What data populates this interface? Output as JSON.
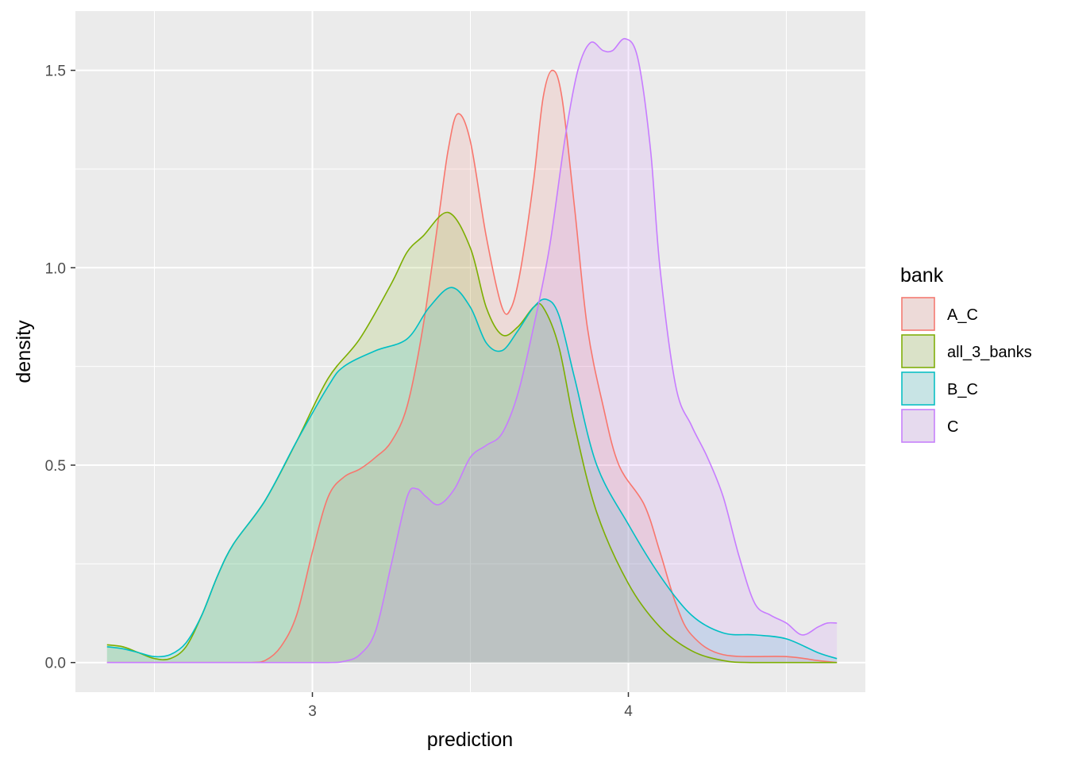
{
  "chart_data": {
    "type": "area",
    "subtype": "density",
    "xlabel": "prediction",
    "ylabel": "density",
    "xlim": [
      2.25,
      4.75
    ],
    "ylim": [
      -0.075,
      1.65
    ],
    "x_ticks": [
      3,
      4
    ],
    "x_tick_labels": [
      "3",
      "4"
    ],
    "x_minor_ticks": [
      2.5,
      3.5,
      4.5
    ],
    "y_ticks": [
      0.0,
      0.5,
      1.0,
      1.5
    ],
    "y_tick_labels": [
      "0.0",
      "0.5",
      "1.0",
      "1.5"
    ],
    "y_minor_ticks": [
      0.25,
      0.75,
      1.25
    ],
    "grid": true,
    "panel_background": "#ebebeb",
    "fill_opacity": 0.15,
    "legend": {
      "title": "bank",
      "placement": "right",
      "entries": [
        "A_C",
        "all_3_banks",
        "B_C",
        "C"
      ]
    },
    "series": [
      {
        "name": "A_C",
        "color": "#f8766d",
        "points": [
          [
            2.35,
            0
          ],
          [
            2.6,
            0
          ],
          [
            2.8,
            0
          ],
          [
            2.85,
            0.005
          ],
          [
            2.9,
            0.04
          ],
          [
            2.95,
            0.12
          ],
          [
            3.0,
            0.28
          ],
          [
            3.05,
            0.42
          ],
          [
            3.1,
            0.47
          ],
          [
            3.15,
            0.49
          ],
          [
            3.2,
            0.52
          ],
          [
            3.25,
            0.56
          ],
          [
            3.3,
            0.65
          ],
          [
            3.35,
            0.85
          ],
          [
            3.4,
            1.13
          ],
          [
            3.43,
            1.3
          ],
          [
            3.46,
            1.39
          ],
          [
            3.5,
            1.32
          ],
          [
            3.55,
            1.08
          ],
          [
            3.6,
            0.9
          ],
          [
            3.63,
            0.9
          ],
          [
            3.66,
            1.0
          ],
          [
            3.7,
            1.22
          ],
          [
            3.73,
            1.43
          ],
          [
            3.76,
            1.5
          ],
          [
            3.79,
            1.43
          ],
          [
            3.83,
            1.15
          ],
          [
            3.87,
            0.85
          ],
          [
            3.92,
            0.65
          ],
          [
            3.97,
            0.5
          ],
          [
            4.05,
            0.4
          ],
          [
            4.1,
            0.28
          ],
          [
            4.15,
            0.15
          ],
          [
            4.2,
            0.07
          ],
          [
            4.3,
            0.02
          ],
          [
            4.5,
            0.015
          ],
          [
            4.6,
            0.005
          ],
          [
            4.66,
            0
          ]
        ]
      },
      {
        "name": "all_3_banks",
        "color": "#7cae00",
        "points": [
          [
            2.35,
            0.045
          ],
          [
            2.4,
            0.04
          ],
          [
            2.45,
            0.025
          ],
          [
            2.5,
            0.01
          ],
          [
            2.55,
            0.01
          ],
          [
            2.6,
            0.04
          ],
          [
            2.65,
            0.12
          ],
          [
            2.7,
            0.22
          ],
          [
            2.75,
            0.3
          ],
          [
            2.85,
            0.41
          ],
          [
            2.95,
            0.56
          ],
          [
            3.05,
            0.72
          ],
          [
            3.15,
            0.82
          ],
          [
            3.25,
            0.96
          ],
          [
            3.3,
            1.04
          ],
          [
            3.35,
            1.08
          ],
          [
            3.43,
            1.14
          ],
          [
            3.5,
            1.05
          ],
          [
            3.55,
            0.9
          ],
          [
            3.6,
            0.83
          ],
          [
            3.65,
            0.85
          ],
          [
            3.7,
            0.9
          ],
          [
            3.73,
            0.9
          ],
          [
            3.78,
            0.8
          ],
          [
            3.83,
            0.6
          ],
          [
            3.9,
            0.38
          ],
          [
            4.0,
            0.2
          ],
          [
            4.1,
            0.09
          ],
          [
            4.2,
            0.03
          ],
          [
            4.3,
            0.005
          ],
          [
            4.4,
            0
          ],
          [
            4.66,
            0
          ]
        ]
      },
      {
        "name": "B_C",
        "color": "#00bfc4",
        "points": [
          [
            2.35,
            0.04
          ],
          [
            2.4,
            0.035
          ],
          [
            2.45,
            0.025
          ],
          [
            2.5,
            0.015
          ],
          [
            2.55,
            0.02
          ],
          [
            2.6,
            0.05
          ],
          [
            2.65,
            0.12
          ],
          [
            2.7,
            0.22
          ],
          [
            2.75,
            0.3
          ],
          [
            2.85,
            0.41
          ],
          [
            2.95,
            0.56
          ],
          [
            3.05,
            0.7
          ],
          [
            3.1,
            0.75
          ],
          [
            3.2,
            0.79
          ],
          [
            3.3,
            0.82
          ],
          [
            3.37,
            0.9
          ],
          [
            3.44,
            0.95
          ],
          [
            3.5,
            0.9
          ],
          [
            3.55,
            0.81
          ],
          [
            3.6,
            0.79
          ],
          [
            3.65,
            0.84
          ],
          [
            3.7,
            0.9
          ],
          [
            3.74,
            0.92
          ],
          [
            3.78,
            0.88
          ],
          [
            3.83,
            0.72
          ],
          [
            3.9,
            0.5
          ],
          [
            4.0,
            0.35
          ],
          [
            4.1,
            0.22
          ],
          [
            4.2,
            0.12
          ],
          [
            4.3,
            0.075
          ],
          [
            4.4,
            0.07
          ],
          [
            4.5,
            0.06
          ],
          [
            4.6,
            0.025
          ],
          [
            4.66,
            0.01
          ]
        ]
      },
      {
        "name": "C",
        "color": "#c77cff",
        "points": [
          [
            2.35,
            0
          ],
          [
            2.9,
            0
          ],
          [
            3.05,
            0
          ],
          [
            3.1,
            0.003
          ],
          [
            3.15,
            0.02
          ],
          [
            3.2,
            0.08
          ],
          [
            3.25,
            0.25
          ],
          [
            3.3,
            0.42
          ],
          [
            3.33,
            0.44
          ],
          [
            3.36,
            0.42
          ],
          [
            3.4,
            0.4
          ],
          [
            3.45,
            0.44
          ],
          [
            3.5,
            0.52
          ],
          [
            3.55,
            0.55
          ],
          [
            3.6,
            0.58
          ],
          [
            3.65,
            0.68
          ],
          [
            3.7,
            0.85
          ],
          [
            3.75,
            1.05
          ],
          [
            3.8,
            1.33
          ],
          [
            3.84,
            1.5
          ],
          [
            3.88,
            1.57
          ],
          [
            3.92,
            1.55
          ],
          [
            3.95,
            1.55
          ],
          [
            3.99,
            1.58
          ],
          [
            4.03,
            1.53
          ],
          [
            4.07,
            1.3
          ],
          [
            4.1,
            1.0
          ],
          [
            4.15,
            0.7
          ],
          [
            4.2,
            0.6
          ],
          [
            4.25,
            0.52
          ],
          [
            4.3,
            0.42
          ],
          [
            4.35,
            0.27
          ],
          [
            4.4,
            0.15
          ],
          [
            4.45,
            0.12
          ],
          [
            4.5,
            0.1
          ],
          [
            4.55,
            0.07
          ],
          [
            4.6,
            0.09
          ],
          [
            4.63,
            0.1
          ],
          [
            4.66,
            0.1
          ]
        ]
      }
    ]
  }
}
